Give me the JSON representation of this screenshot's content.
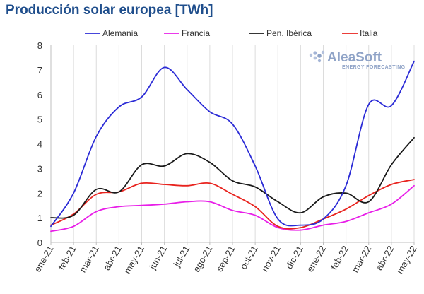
{
  "chart_data": {
    "type": "line",
    "title": "Producción solar europea [TWh]",
    "xlabel": "",
    "ylabel": "",
    "categories": [
      "ene-21",
      "feb-21",
      "mar-21",
      "abr-21",
      "may-21",
      "jun-21",
      "jul-21",
      "ago-21",
      "sep-21",
      "oct-21",
      "nov-21",
      "dic-21",
      "ene-22",
      "feb-22",
      "mar-22",
      "abr-22",
      "may-22"
    ],
    "ylim": [
      0,
      8
    ],
    "yticks": [
      0,
      1,
      2,
      3,
      4,
      5,
      6,
      7,
      8
    ],
    "grid": "vertical",
    "legend_position": "top",
    "series": [
      {
        "name": "Alemania",
        "color": "#2b2bd6",
        "values": [
          0.65,
          2.0,
          4.3,
          5.5,
          5.9,
          7.1,
          6.2,
          5.3,
          4.8,
          3.1,
          0.95,
          0.7,
          0.95,
          2.3,
          5.6,
          5.55,
          7.35
        ]
      },
      {
        "name": "Francia",
        "color": "#e81ee8",
        "values": [
          0.45,
          0.65,
          1.25,
          1.45,
          1.5,
          1.55,
          1.65,
          1.65,
          1.3,
          1.1,
          0.6,
          0.5,
          0.7,
          0.85,
          1.2,
          1.55,
          2.3
        ]
      },
      {
        "name": "Pen. Ibérica",
        "color": "#1a1a1a",
        "values": [
          1.0,
          1.1,
          2.15,
          2.05,
          3.15,
          3.1,
          3.6,
          3.25,
          2.5,
          2.25,
          1.65,
          1.2,
          1.85,
          2.0,
          1.65,
          3.15,
          4.25
        ]
      },
      {
        "name": "Italia",
        "color": "#e8231e",
        "values": [
          0.7,
          1.15,
          1.95,
          2.05,
          2.4,
          2.35,
          2.3,
          2.4,
          1.95,
          1.45,
          0.65,
          0.6,
          0.95,
          1.35,
          1.9,
          2.35,
          2.55
        ]
      }
    ]
  },
  "logo": {
    "main": "AleaSoft",
    "sub": "ENERGY FORECASTING"
  }
}
